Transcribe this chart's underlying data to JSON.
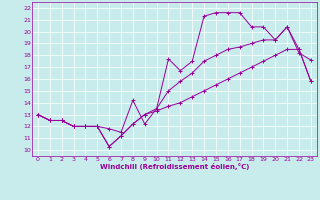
{
  "xlabel": "Windchill (Refroidissement éolien,°C)",
  "background_color": "#c8ecec",
  "line_color": "#990099",
  "grid_color": "#ffffff",
  "xlim": [
    -0.5,
    23.5
  ],
  "ylim": [
    9.5,
    22.5
  ],
  "xticks": [
    0,
    1,
    2,
    3,
    4,
    5,
    6,
    7,
    8,
    9,
    10,
    11,
    12,
    13,
    14,
    15,
    16,
    17,
    18,
    19,
    20,
    21,
    22,
    23
  ],
  "yticks": [
    10,
    11,
    12,
    13,
    14,
    15,
    16,
    17,
    18,
    19,
    20,
    21,
    22
  ],
  "line1_x": [
    0,
    1,
    2,
    3,
    4,
    5,
    6,
    7,
    8,
    9,
    10,
    11,
    12,
    13,
    14,
    15,
    16,
    17,
    18,
    19,
    20,
    21,
    22,
    23
  ],
  "line1_y": [
    13.0,
    12.5,
    12.5,
    12.0,
    12.0,
    12.0,
    11.8,
    11.5,
    14.2,
    12.2,
    13.5,
    17.7,
    16.7,
    17.5,
    21.3,
    21.6,
    21.6,
    21.6,
    20.4,
    20.4,
    19.3,
    20.4,
    18.2,
    17.6
  ],
  "line2_x": [
    0,
    1,
    2,
    3,
    4,
    5,
    6,
    7,
    8,
    9,
    10,
    11,
    12,
    13,
    14,
    15,
    16,
    17,
    18,
    19,
    20,
    21,
    22,
    23
  ],
  "line2_y": [
    13.0,
    12.5,
    12.5,
    12.0,
    12.0,
    12.0,
    10.3,
    11.2,
    12.2,
    13.0,
    13.5,
    15.0,
    15.8,
    16.5,
    17.5,
    18.0,
    18.5,
    18.7,
    19.0,
    19.3,
    19.3,
    20.4,
    18.5,
    15.8
  ],
  "line3_x": [
    0,
    1,
    2,
    3,
    4,
    5,
    6,
    7,
    8,
    9,
    10,
    11,
    12,
    13,
    14,
    15,
    16,
    17,
    18,
    19,
    20,
    21,
    22,
    23
  ],
  "line3_y": [
    13.0,
    12.5,
    12.5,
    12.0,
    12.0,
    12.0,
    10.3,
    11.2,
    12.2,
    13.0,
    13.3,
    13.7,
    14.0,
    14.5,
    15.0,
    15.5,
    16.0,
    16.5,
    17.0,
    17.5,
    18.0,
    18.5,
    18.5,
    15.8
  ]
}
